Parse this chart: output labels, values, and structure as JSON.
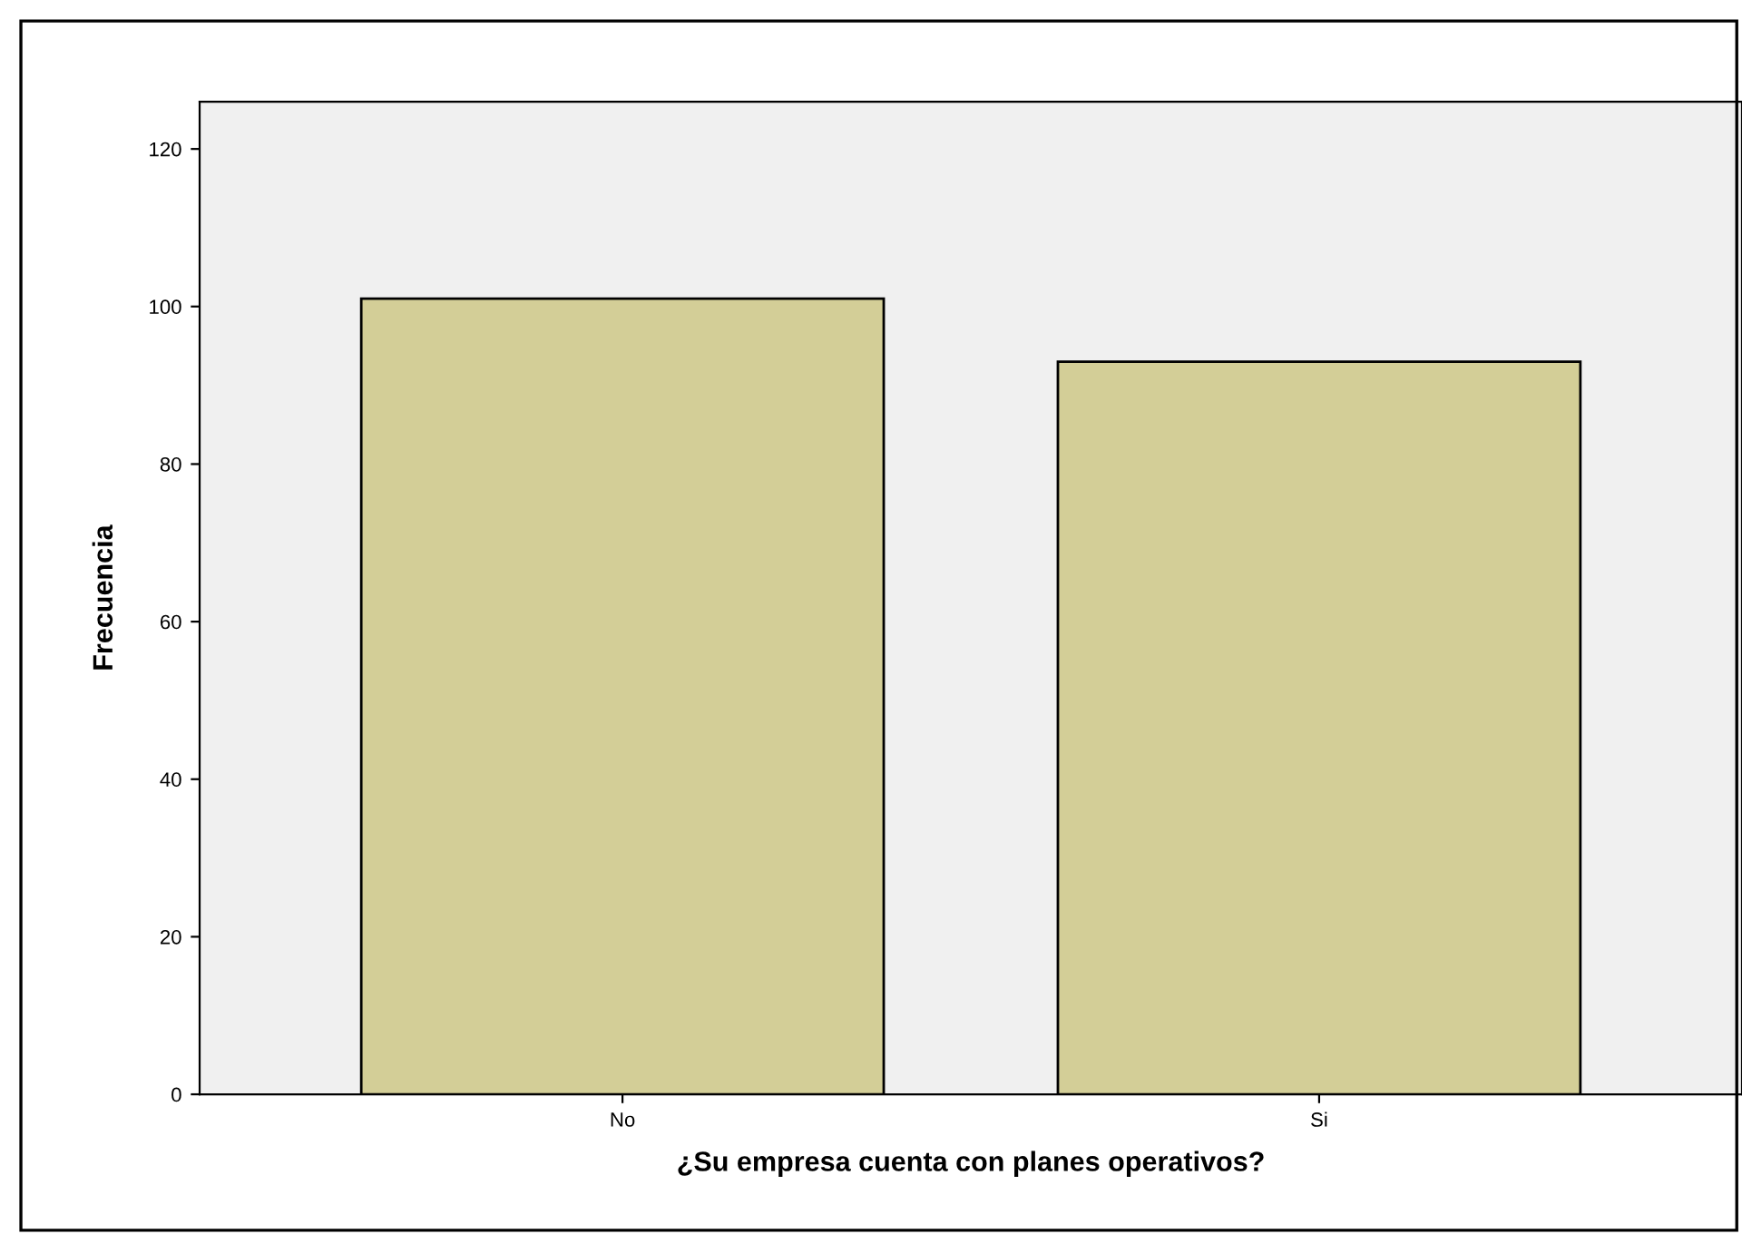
{
  "chart_data": {
    "type": "bar",
    "xlabel": "¿Su empresa cuenta con planes operativos?",
    "ylabel": "Frecuencia",
    "categories": [
      "No",
      "Si"
    ],
    "values": [
      101,
      93
    ],
    "color": "#d3ce97",
    "ylim": [
      0,
      126
    ],
    "yticks": [
      0,
      20,
      40,
      60,
      80,
      100,
      120
    ],
    "grid": false,
    "legend": false
  }
}
